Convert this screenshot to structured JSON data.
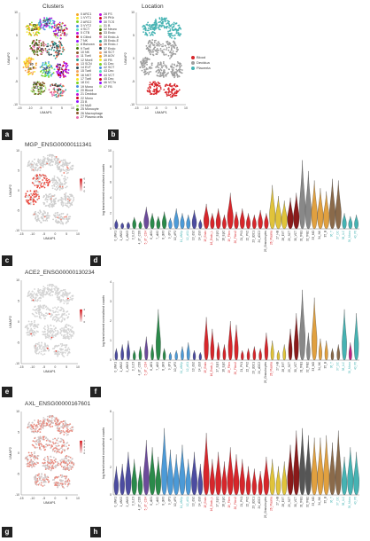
{
  "watermark": "",
  "panels": {
    "a": {
      "label": "a",
      "title": "Clusters",
      "xlabel": "UMAP1",
      "ylabel": "UMAP2",
      "xticks": [
        "-15",
        "-10",
        "-5",
        "0",
        "5",
        "10"
      ],
      "yticks": [
        "10",
        "5",
        "0",
        "-5",
        "-10"
      ],
      "cluster_numbers": [
        "2",
        "4",
        "5",
        "6",
        "7",
        "9",
        "10",
        "11",
        "12",
        "14",
        "15",
        "16",
        "17",
        "18",
        "19",
        "20",
        "21",
        "22",
        "23",
        "24",
        "25",
        "26",
        "27",
        "30",
        "31",
        "32",
        "33",
        "35",
        "36",
        "38",
        "39",
        "40"
      ],
      "legend_left": [
        "0 ARC1",
        "1 VYT1",
        "2 ARC2",
        "3 VYT2",
        "4 SCT",
        "5 CTB",
        "6 Cilled",
        "7 NK",
        "8 Bshown",
        "9 Tcell",
        "10 NK",
        "11 Tcell",
        "12 Mcell",
        "13 SCN",
        "14 EVT",
        "15 Tcell",
        "16 NKT",
        "17 Tcell",
        "18 DC",
        "19 Mono",
        "20 Blood",
        "21 Decidua",
        "22 Mono",
        "23 B",
        "24 MyD",
        "25 Monocyte",
        "26 Macrophage",
        "27 Plasma cells"
      ],
      "legend_right": [
        "28 FS",
        "29 PKb",
        "30 TCS",
        "31 B",
        "32 Neuro",
        "33 Endo",
        "34 Endo-A",
        "35 Endo-E",
        "36 Endo-I",
        "37 Endo",
        "38 SCT",
        "39 AOV",
        "40 FB",
        "41 Dec",
        "42 SCT",
        "43 Dec",
        "44 VCT",
        "45 Dec",
        "46 VCTn",
        "47 FB"
      ]
    },
    "b": {
      "label": "b",
      "title": "Location",
      "xlabel": "UMAP1",
      "ylabel": "UMAP2",
      "xticks": [
        "-15",
        "-10",
        "-5",
        "0",
        "5",
        "10"
      ],
      "yticks": [
        "10",
        "5",
        "0",
        "-5",
        "-10"
      ],
      "legend": [
        {
          "name": "Blood",
          "color": "#d7262b"
        },
        {
          "name": "Decidua",
          "color": "#9e9e9e"
        },
        {
          "name": "Placenta",
          "color": "#46b3b3"
        }
      ]
    },
    "c": {
      "label": "c",
      "title": "MGP_ENSG00000111341",
      "xlabel": "UMAP1",
      "ylabel": "UMAP2",
      "xticks": [
        "-15",
        "-10",
        "-5",
        "0",
        "5",
        "10"
      ],
      "yticks": [
        "10",
        "5",
        "0",
        "-5",
        "-10"
      ],
      "scale": [
        "6",
        "4",
        "2",
        "0"
      ]
    },
    "d": {
      "label": "d",
      "ylabel": "log transformed normalised counts",
      "yticks": [
        "10",
        "8",
        "6",
        "4",
        "2",
        "0"
      ]
    },
    "e": {
      "label": "e",
      "title": "ACE2_ENSG00000130234",
      "xlabel": "UMAP1",
      "ylabel": "UMAP2",
      "xticks": [
        "-15",
        "-10",
        "-5",
        "0",
        "5",
        "10"
      ],
      "yticks": [
        "10",
        "5",
        "0",
        "-5",
        "-10"
      ],
      "scale": [
        "2",
        "1",
        "0"
      ]
    },
    "f": {
      "label": "f",
      "ylabel": "log transformed normalised counts",
      "yticks": [
        "4",
        "3",
        "2",
        "1",
        "0"
      ]
    },
    "g": {
      "label": "g",
      "title": "AXL_ENSG00000167601",
      "xlabel": "UMAP1",
      "ylabel": "UMAP2",
      "xticks": [
        "-15",
        "-10",
        "-5",
        "0",
        "5",
        "10"
      ],
      "yticks": [
        "10",
        "5",
        "0",
        "-5",
        "-10"
      ],
      "scale": [
        "4",
        "3",
        "2",
        "1",
        "0"
      ]
    },
    "h": {
      "label": "h",
      "ylabel": "log transformed normalised counts",
      "yticks": [
        "6",
        "4",
        "2",
        "0"
      ]
    }
  },
  "violin_categories": [
    {
      "name": "0_dNK1",
      "color": "#333333"
    },
    {
      "name": "1_dNK2",
      "color": "#333333"
    },
    {
      "name": "2_dNK3",
      "color": "#333333"
    },
    {
      "name": "3_ILC3",
      "color": "#333333"
    },
    {
      "name": "4_dT_CD8",
      "color": "#333333"
    },
    {
      "name": "5_dT_CD4",
      "color": "#d7262b"
    },
    {
      "name": "6_dM1",
      "color": "#333333"
    },
    {
      "name": "7_dM2",
      "color": "#333333"
    },
    {
      "name": "8_dM3",
      "color": "#333333"
    },
    {
      "name": "9_dP1",
      "color": "#333333"
    },
    {
      "name": "10_dP2",
      "color": "#333333"
    },
    {
      "name": "11_dNKp",
      "color": "#46b3b3"
    },
    {
      "name": "12_dS1",
      "color": "#46b3b3"
    },
    {
      "name": "13_dS2",
      "color": "#333333"
    },
    {
      "name": "14_dS3",
      "color": "#333333"
    },
    {
      "name": "15_Endo",
      "color": "#d7262b"
    },
    {
      "name": "16_Endo_L",
      "color": "#d7262b"
    },
    {
      "name": "17_Epi1",
      "color": "#333333"
    },
    {
      "name": "18_Epi2",
      "color": "#333333"
    },
    {
      "name": "19_Fibro",
      "color": "#d7262b"
    },
    {
      "name": "20_Fibro2",
      "color": "#d7262b"
    },
    {
      "name": "21_PV1",
      "color": "#333333"
    },
    {
      "name": "22_PV2",
      "color": "#333333"
    },
    {
      "name": "23_dDC1",
      "color": "#333333"
    },
    {
      "name": "24_dDC2",
      "color": "#333333"
    },
    {
      "name": "25_Granulocytes",
      "color": "#333333"
    },
    {
      "name": "26_Plasma",
      "color": "#d7262b"
    },
    {
      "name": "27_HB",
      "color": "#333333"
    },
    {
      "name": "28_EVT",
      "color": "#333333"
    },
    {
      "name": "29_SCT",
      "color": "#333333"
    },
    {
      "name": "30_VCT",
      "color": "#333333"
    },
    {
      "name": "31_fFB1",
      "color": "#333333"
    },
    {
      "name": "32_fFB2",
      "color": "#333333"
    },
    {
      "name": "33_MO",
      "color": "#333333"
    },
    {
      "name": "34_NK",
      "color": "#333333"
    },
    {
      "name": "35_B",
      "color": "#333333"
    },
    {
      "name": "36_T",
      "color": "#46b3b3"
    },
    {
      "name": "37_DC",
      "color": "#46b3b3"
    },
    {
      "name": "38_ILC",
      "color": "#46b3b3"
    },
    {
      "name": "39_Mono",
      "color": "#46b3b3"
    },
    {
      "name": "40_Plt",
      "color": "#46b3b3"
    }
  ],
  "chart_data": [
    {
      "type": "scatter",
      "panel": "d-violin",
      "note_type": "violin",
      "gene": "MGP_ENSG00000111341",
      "ylim": [
        0,
        10
      ],
      "max_values": [
        1.2,
        0.8,
        0.9,
        1.5,
        1.0,
        2.8,
        2.0,
        1.6,
        2.2,
        1.4,
        2.6,
        2.0,
        1.8,
        2.4,
        1.2,
        3.2,
        2.0,
        2.6,
        1.8,
        4.6,
        2.2,
        2.6,
        2.0,
        1.8,
        2.4,
        2.0,
        5.6,
        4.2,
        3.6,
        4.0,
        4.6,
        8.8,
        7.4,
        6.2,
        5.2,
        4.8,
        6.4,
        6.2,
        2.0,
        1.6,
        1.8
      ],
      "fill_colors": [
        "#4c4ca0",
        "#4c4ca0",
        "#4c4ca0",
        "#2a8a4a",
        "#2a8a4a",
        "#6b4a9a",
        "#2a8a4a",
        "#2a8a4a",
        "#2a8a4a",
        "#4c9ad7",
        "#4c9ad7",
        "#4c9ad7",
        "#4c9ad7",
        "#4c4ca0",
        "#4c4ca0",
        "#d7262b",
        "#d7262b",
        "#d7262b",
        "#d7262b",
        "#d7262b",
        "#d7262b",
        "#d7262b",
        "#d7262b",
        "#d7262b",
        "#d7262b",
        "#d7262b",
        "#e0c33a",
        "#e0c33a",
        "#e0c33a",
        "#8a1a1a",
        "#8a1a1a",
        "#888888",
        "#888888",
        "#e0a040",
        "#e0a040",
        "#e0a040",
        "#8a6a4a",
        "#8a6a4a",
        "#46b3b3",
        "#46b3b3",
        "#46b3b3"
      ]
    },
    {
      "type": "scatter",
      "panel": "f-violin",
      "note_type": "violin",
      "gene": "ACE2_ENSG00000130234",
      "ylim": [
        0,
        4
      ],
      "max_values": [
        0.6,
        0.8,
        1.0,
        0.5,
        0.7,
        1.2,
        0.8,
        2.6,
        0.6,
        0.4,
        0.5,
        0.7,
        0.9,
        0.5,
        0.4,
        2.2,
        1.6,
        0.9,
        0.8,
        2.0,
        1.8,
        0.5,
        0.6,
        0.7,
        0.6,
        1.4,
        1.0,
        0.5,
        0.8,
        1.6,
        2.4,
        3.6,
        1.4,
        3.2,
        1.1,
        1.0,
        0.6,
        0.8,
        2.6,
        0.9,
        2.4
      ],
      "fill_colors": [
        "#4c4ca0",
        "#4c4ca0",
        "#4c4ca0",
        "#2a8a4a",
        "#2a8a4a",
        "#6b4a9a",
        "#2a8a4a",
        "#2a8a4a",
        "#2a8a4a",
        "#4c9ad7",
        "#4c9ad7",
        "#4c9ad7",
        "#4c9ad7",
        "#4c4ca0",
        "#4c4ca0",
        "#d7262b",
        "#d7262b",
        "#d7262b",
        "#d7262b",
        "#d7262b",
        "#d7262b",
        "#d7262b",
        "#d7262b",
        "#d7262b",
        "#d7262b",
        "#d7262b",
        "#e0c33a",
        "#e0c33a",
        "#e0c33a",
        "#8a1a1a",
        "#8a1a1a",
        "#888888",
        "#888888",
        "#e0a040",
        "#e0a040",
        "#e0a040",
        "#8a6a4a",
        "#8a6a4a",
        "#46b3b3",
        "#c02080",
        "#46b3b3"
      ]
    },
    {
      "type": "scatter",
      "panel": "h-violin",
      "note_type": "violin",
      "gene": "AXL_ENSG00000167601",
      "ylim": [
        0,
        7
      ],
      "max_values": [
        2.4,
        2.6,
        3.6,
        3.0,
        2.4,
        4.6,
        4.0,
        3.2,
        5.6,
        3.8,
        3.4,
        4.2,
        3.0,
        3.6,
        2.6,
        5.2,
        3.0,
        3.6,
        2.8,
        4.0,
        3.4,
        3.0,
        2.4,
        2.2,
        2.0,
        3.2,
        3.0,
        2.4,
        2.8,
        4.2,
        5.4,
        5.6,
        5.0,
        4.8,
        4.8,
        5.0,
        4.4,
        5.4,
        3.2,
        4.0,
        3.6
      ],
      "fill_colors": [
        "#4c4ca0",
        "#4c4ca0",
        "#4c4ca0",
        "#2a8a4a",
        "#2a8a4a",
        "#6b4a9a",
        "#2a8a4a",
        "#2a8a4a",
        "#4c9ad7",
        "#4c9ad7",
        "#4c9ad7",
        "#4c9ad7",
        "#4c9ad7",
        "#4c4ca0",
        "#4c4ca0",
        "#d7262b",
        "#d7262b",
        "#d7262b",
        "#d7262b",
        "#d7262b",
        "#d7262b",
        "#d7262b",
        "#d7262b",
        "#d7262b",
        "#d7262b",
        "#d7262b",
        "#e0c33a",
        "#e0c33a",
        "#e0c33a",
        "#8a1a1a",
        "#8a1a1a",
        "#555555",
        "#555555",
        "#e0a040",
        "#e0a040",
        "#e0a040",
        "#8a6a4a",
        "#8a6a4a",
        "#46b3b3",
        "#46b3b3",
        "#46b3b3"
      ]
    }
  ]
}
